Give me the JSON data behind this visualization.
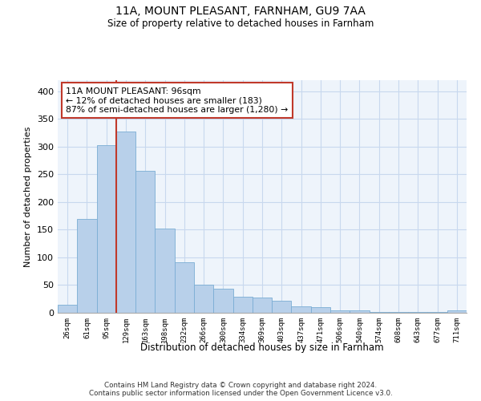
{
  "title1": "11A, MOUNT PLEASANT, FARNHAM, GU9 7AA",
  "title2": "Size of property relative to detached houses in Farnham",
  "xlabel": "Distribution of detached houses by size in Farnham",
  "ylabel": "Number of detached properties",
  "categories": [
    "26sqm",
    "61sqm",
    "95sqm",
    "129sqm",
    "163sqm",
    "198sqm",
    "232sqm",
    "266sqm",
    "300sqm",
    "334sqm",
    "369sqm",
    "403sqm",
    "437sqm",
    "471sqm",
    "506sqm",
    "540sqm",
    "574sqm",
    "608sqm",
    "643sqm",
    "677sqm",
    "711sqm"
  ],
  "values": [
    14,
    170,
    302,
    327,
    257,
    152,
    91,
    51,
    44,
    29,
    28,
    22,
    11,
    10,
    5,
    4,
    2,
    1,
    2,
    1,
    4
  ],
  "bar_color": "#b8d0ea",
  "bar_edge_color": "#7aadd4",
  "grid_color": "#c8d8ee",
  "bg_color": "#eef4fb",
  "vline_color": "#c0392b",
  "vline_index": 2,
  "annotation_text": "11A MOUNT PLEASANT: 96sqm\n← 12% of detached houses are smaller (183)\n87% of semi-detached houses are larger (1,280) →",
  "annotation_box_color": "white",
  "annotation_box_edge": "#c0392b",
  "ylim": [
    0,
    420
  ],
  "yticks": [
    0,
    50,
    100,
    150,
    200,
    250,
    300,
    350,
    400
  ],
  "footer": "Contains HM Land Registry data © Crown copyright and database right 2024.\nContains public sector information licensed under the Open Government Licence v3.0."
}
